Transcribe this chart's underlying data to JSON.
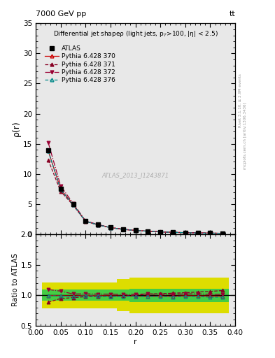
{
  "title_left": "7000 GeV pp",
  "title_right": "tt",
  "ylabel_main": "ρ(r)",
  "ylabel_ratio": "Ratio to ATLAS",
  "xlabel": "r",
  "annotation": "ATLAS_2013_I1243871",
  "watermark1": "Rivet 3.1.10, ≥ 2.9M events",
  "watermark2": "mcplots.cern.ch [arXiv:1306.3436]",
  "plot_title": "Differential jet shapeρ",
  "plot_subtitle": "(light jets, p_{T}>100, |η| < 2.5)",
  "r_values": [
    0.025,
    0.05,
    0.075,
    0.1,
    0.125,
    0.15,
    0.175,
    0.2,
    0.225,
    0.25,
    0.275,
    0.3,
    0.325,
    0.35,
    0.375
  ],
  "atlas_data": [
    13.9,
    7.5,
    5.0,
    2.15,
    1.55,
    1.1,
    0.8,
    0.62,
    0.48,
    0.38,
    0.3,
    0.24,
    0.19,
    0.16,
    0.13
  ],
  "p370_data": [
    13.85,
    7.45,
    4.95,
    2.14,
    1.54,
    1.09,
    0.79,
    0.61,
    0.47,
    0.375,
    0.295,
    0.238,
    0.188,
    0.158,
    0.128
  ],
  "p371_data": [
    12.3,
    7.1,
    4.8,
    2.1,
    1.52,
    1.08,
    0.79,
    0.62,
    0.49,
    0.39,
    0.31,
    0.25,
    0.2,
    0.17,
    0.14
  ],
  "p372_data": [
    15.2,
    8.0,
    5.1,
    2.2,
    1.58,
    1.12,
    0.81,
    0.63,
    0.49,
    0.385,
    0.305,
    0.245,
    0.195,
    0.162,
    0.132
  ],
  "p376_data": [
    13.8,
    7.4,
    4.9,
    2.13,
    1.53,
    1.08,
    0.785,
    0.61,
    0.47,
    0.372,
    0.292,
    0.235,
    0.186,
    0.155,
    0.126
  ],
  "ratio_green_lo": [
    0.91,
    0.91,
    0.91,
    0.91,
    0.91,
    0.91,
    0.91,
    0.89,
    0.89,
    0.89,
    0.89,
    0.89,
    0.89,
    0.89,
    0.89
  ],
  "ratio_green_hi": [
    1.09,
    1.09,
    1.09,
    1.09,
    1.09,
    1.09,
    1.09,
    1.11,
    1.11,
    1.11,
    1.11,
    1.11,
    1.11,
    1.11,
    1.11
  ],
  "ratio_yellow_lo": [
    0.79,
    0.79,
    0.79,
    0.79,
    0.79,
    0.79,
    0.74,
    0.71,
    0.71,
    0.71,
    0.71,
    0.71,
    0.71,
    0.71,
    0.71
  ],
  "ratio_yellow_hi": [
    1.21,
    1.21,
    1.21,
    1.21,
    1.21,
    1.21,
    1.26,
    1.29,
    1.29,
    1.29,
    1.29,
    1.29,
    1.29,
    1.29,
    1.29
  ],
  "color_370": "#cc0000",
  "color_371": "#880022",
  "color_372": "#990033",
  "color_376": "#008888",
  "color_atlas": "black",
  "color_green": "#44cc44",
  "color_yellow": "#dddd00",
  "ylim_main": [
    0,
    35
  ],
  "ylim_ratio": [
    0.5,
    2.0
  ],
  "xlim": [
    0.0,
    0.4
  ],
  "yticks_main": [
    0,
    5,
    10,
    15,
    20,
    25,
    30,
    35
  ],
  "yticks_ratio": [
    0.5,
    1.0,
    1.5,
    2.0
  ],
  "bg_color": "#e8e8e8"
}
